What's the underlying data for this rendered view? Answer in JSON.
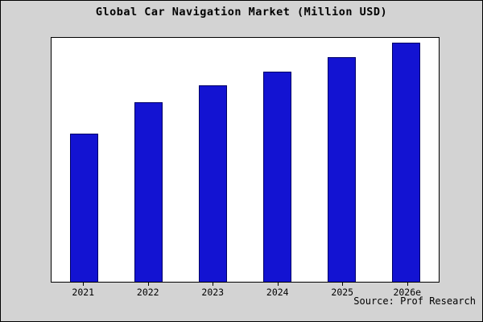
{
  "source_label": "Source: Prof Research",
  "colors": {
    "background": "#d3d3d3",
    "plot_background": "#ffffff",
    "bar_fill": "#1313d2",
    "bar_border": "#000066"
  },
  "chart_data": {
    "type": "bar",
    "title": "Global Car Navigation Market (Million USD)",
    "categories": [
      "2021",
      "2022",
      "2023",
      "2024",
      "2025",
      "2026e"
    ],
    "values": [
      62,
      75,
      82,
      88,
      94,
      100
    ],
    "xlabel": "",
    "ylabel": "",
    "ylim": [
      0,
      102
    ],
    "grid": false,
    "legend": "none"
  }
}
